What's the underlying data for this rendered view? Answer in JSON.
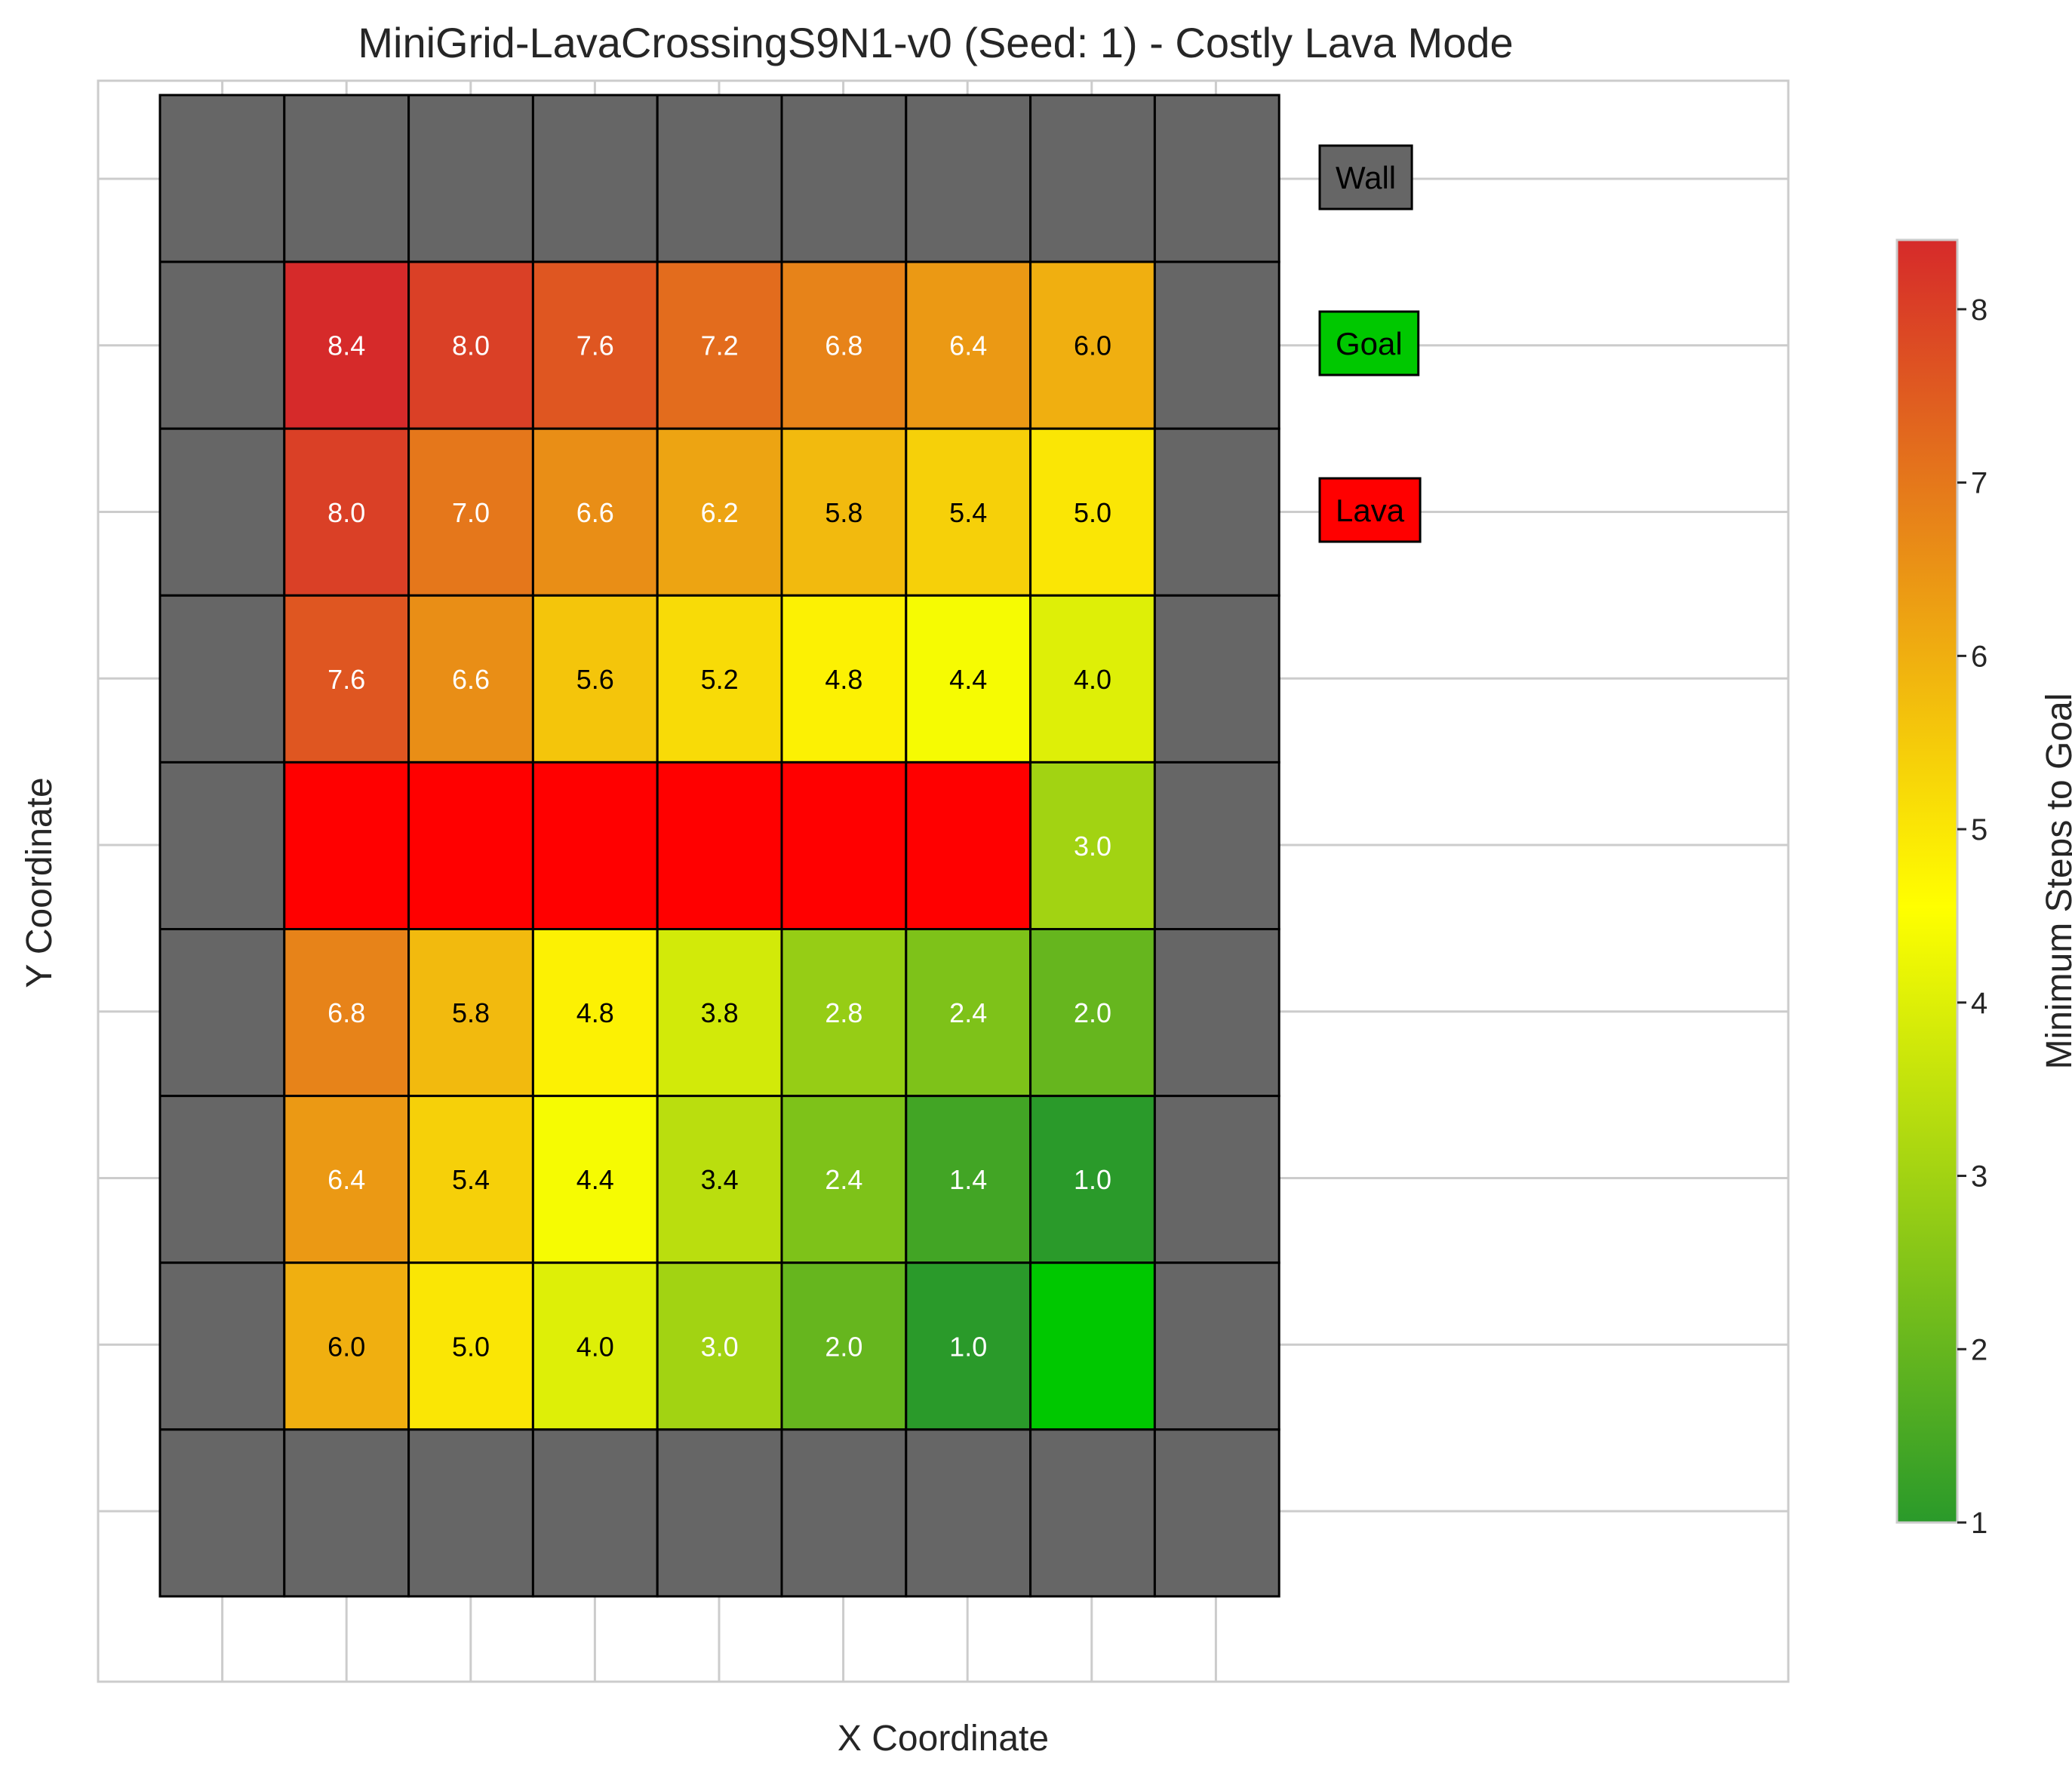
{
  "chart_data": {
    "type": "heatmap",
    "title": "MiniGrid-LavaCrossingS9N1-v0 (Seed: 1) - Costly Lava Mode",
    "xlabel": "X Coordinate",
    "ylabel": "Y Coordinate",
    "grid": true,
    "colorbar": {
      "label": "Minimum Steps to Goal",
      "min": 1,
      "max": 8.4,
      "ticks": [
        "1",
        "2",
        "3",
        "4",
        "5",
        "6",
        "7",
        "8"
      ],
      "colors": [
        "#2a9a2a",
        "#ffff00",
        "#d62a2a"
      ]
    },
    "cell_colors": {
      "wall": "#666666",
      "goal": "#00c800",
      "lava": "#ff0000"
    },
    "legend": [
      {
        "label": "Wall",
        "color": "#666666"
      },
      {
        "label": "Goal",
        "color": "#00c800"
      },
      {
        "label": "Lava",
        "color": "#ff0000"
      }
    ],
    "legend_position": "upper right, outside grid",
    "grid_size": [
      9,
      9
    ],
    "cells": [
      [
        "W",
        "W",
        "W",
        "W",
        "W",
        "W",
        "W",
        "W",
        "W"
      ],
      [
        "W",
        8.4,
        8.0,
        7.6,
        7.2,
        6.8,
        6.4,
        6.0,
        "W"
      ],
      [
        "W",
        8.0,
        7.0,
        6.6,
        6.2,
        5.8,
        5.4,
        5.0,
        "W"
      ],
      [
        "W",
        7.6,
        6.6,
        5.6,
        5.2,
        4.8,
        4.4,
        4.0,
        "W"
      ],
      [
        "W",
        "L",
        "L",
        "L",
        "L",
        "L",
        "L",
        3.0,
        "W"
      ],
      [
        "W",
        6.8,
        5.8,
        4.8,
        3.8,
        2.8,
        2.4,
        2.0,
        "W"
      ],
      [
        "W",
        6.4,
        5.4,
        4.4,
        3.4,
        2.4,
        1.4,
        1.0,
        "W"
      ],
      [
        "W",
        6.0,
        5.0,
        4.0,
        3.0,
        2.0,
        1.0,
        "G",
        "W"
      ],
      [
        "W",
        "W",
        "W",
        "W",
        "W",
        "W",
        "W",
        "W",
        "W"
      ]
    ]
  }
}
